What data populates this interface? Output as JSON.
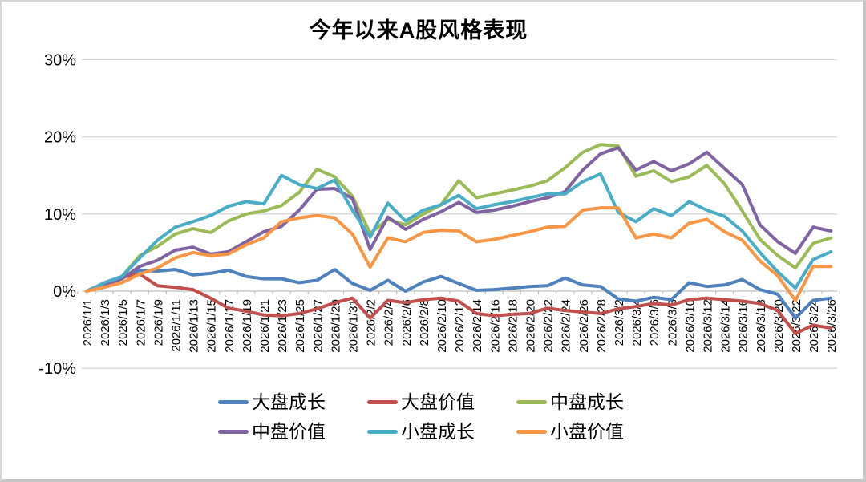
{
  "title": "今年以来A股风格表现",
  "chart_data": {
    "type": "line",
    "title": "今年以来A股风格表现",
    "xlabel": "",
    "ylabel": "",
    "ylim": [
      -10,
      30
    ],
    "grid": true,
    "legend_position": "bottom",
    "ytick_labels": [
      "30%",
      "20%",
      "10%",
      "0%",
      "-10%"
    ],
    "ytick_values": [
      30,
      20,
      10,
      0,
      -10
    ],
    "x_labels": [
      "2026/1/1",
      "2026/1/3",
      "2026/1/5",
      "2026/1/7",
      "2026/1/9",
      "2026/1/11",
      "2026/1/13",
      "2026/1/15",
      "2026/1/17",
      "2026/1/19",
      "2026/1/21",
      "2026/1/23",
      "2026/1/25",
      "2026/1/27",
      "2026/1/29",
      "2026/1/31",
      "2026/2/2",
      "2026/2/4",
      "2026/2/6",
      "2026/2/8",
      "2026/2/10",
      "2026/2/12",
      "2026/2/14",
      "2026/2/16",
      "2026/2/18",
      "2026/2/20",
      "2026/2/22",
      "2026/2/24",
      "2026/2/26",
      "2026/2/28",
      "2026/3/2",
      "2026/3/4",
      "2026/3/6",
      "2026/3/8",
      "2026/3/10",
      "2026/3/12",
      "2026/3/14",
      "2026/3/16",
      "2026/3/18",
      "2026/3/20",
      "2026/3/22",
      "2026/3/24",
      "2026/3/26"
    ],
    "series": [
      {
        "name": "大盘成长",
        "color": "#4F81BD",
        "values": [
          0,
          1.0,
          1.8,
          2.7,
          2.6,
          2.8,
          2.1,
          2.3,
          2.7,
          1.9,
          1.6,
          1.6,
          1.1,
          1.4,
          2.8,
          1.0,
          0.1,
          1.4,
          0.0,
          1.2,
          1.9,
          1.0,
          0.1,
          0.2,
          0.4,
          0.6,
          0.7,
          1.7,
          0.8,
          0.6,
          -1.0,
          -1.3,
          -0.8,
          -1.1,
          1.1,
          0.6,
          0.8,
          1.5,
          0.2,
          -0.4,
          -3.5,
          -1.2,
          -0.9
        ]
      },
      {
        "name": "大盘价值",
        "color": "#C0504D",
        "values": [
          0,
          0.9,
          1.8,
          2.2,
          0.7,
          0.5,
          0.2,
          -0.9,
          -2.2,
          -2.6,
          -3.1,
          -3.2,
          -2.9,
          -2.3,
          -1.5,
          -0.9,
          -3.5,
          -1.2,
          -1.5,
          -1.1,
          -0.9,
          -1.3,
          -2.9,
          -3.2,
          -3.0,
          -2.9,
          -2.2,
          -2.5,
          -2.7,
          -2.9,
          -2.3,
          -2.0,
          -1.6,
          -1.8,
          -1.1,
          -0.9,
          -1.1,
          -1.3,
          -1.6,
          -2.5,
          -5.5,
          -4.4,
          -4.8
        ]
      },
      {
        "name": "中盘成长",
        "color": "#9BBB59",
        "values": [
          0,
          1.0,
          1.9,
          4.6,
          5.8,
          7.4,
          8.1,
          7.6,
          9.1,
          10.0,
          10.4,
          11.1,
          12.8,
          15.8,
          14.8,
          12.3,
          7.5,
          9.3,
          8.6,
          10.0,
          11.2,
          14.3,
          12.1,
          12.6,
          13.1,
          13.6,
          14.3,
          16.0,
          18.0,
          19.0,
          18.8,
          14.9,
          15.6,
          14.2,
          14.8,
          16.3,
          13.9,
          10.4,
          6.7,
          4.6,
          3.0,
          6.2,
          6.9
        ]
      },
      {
        "name": "中盘价值",
        "color": "#8064A2",
        "values": [
          0,
          0.8,
          1.6,
          3.2,
          4.0,
          5.3,
          5.7,
          4.8,
          5.1,
          6.4,
          7.7,
          8.4,
          10.5,
          13.2,
          13.3,
          12.0,
          5.4,
          9.6,
          8.0,
          9.3,
          10.3,
          11.5,
          10.2,
          10.5,
          11.0,
          11.6,
          12.1,
          12.9,
          15.7,
          17.8,
          18.6,
          15.7,
          16.8,
          15.6,
          16.5,
          18.0,
          15.9,
          13.8,
          8.6,
          6.4,
          4.9,
          8.3,
          7.8
        ]
      },
      {
        "name": "小盘成长",
        "color": "#4BACC6",
        "values": [
          0,
          1.1,
          1.9,
          4.3,
          6.6,
          8.3,
          9.0,
          9.8,
          11.0,
          11.6,
          11.3,
          15.0,
          13.8,
          13.3,
          14.4,
          10.5,
          7.0,
          11.4,
          9.1,
          10.5,
          11.2,
          12.4,
          10.7,
          11.2,
          11.6,
          12.1,
          12.6,
          12.6,
          14.2,
          15.2,
          10.2,
          9.0,
          10.7,
          9.8,
          11.6,
          10.5,
          9.7,
          7.8,
          5.0,
          2.5,
          0.4,
          4.1,
          5.1
        ]
      },
      {
        "name": "小盘价值",
        "color": "#F79646",
        "values": [
          0,
          0.5,
          1.1,
          2.2,
          3.0,
          4.3,
          5.0,
          4.6,
          4.8,
          6.0,
          6.9,
          9.0,
          9.5,
          9.8,
          9.5,
          7.4,
          3.1,
          6.9,
          6.4,
          7.6,
          7.9,
          7.8,
          6.4,
          6.7,
          7.2,
          7.7,
          8.3,
          8.4,
          10.5,
          10.8,
          10.8,
          6.9,
          7.4,
          6.9,
          8.8,
          9.3,
          7.7,
          6.6,
          3.9,
          2.0,
          -1.2,
          3.2,
          3.2
        ]
      }
    ]
  },
  "colors": {
    "grid": "#D6D6D6",
    "axis": "#BFBFBF",
    "text": "#000000",
    "background": "#FFFFFF"
  }
}
